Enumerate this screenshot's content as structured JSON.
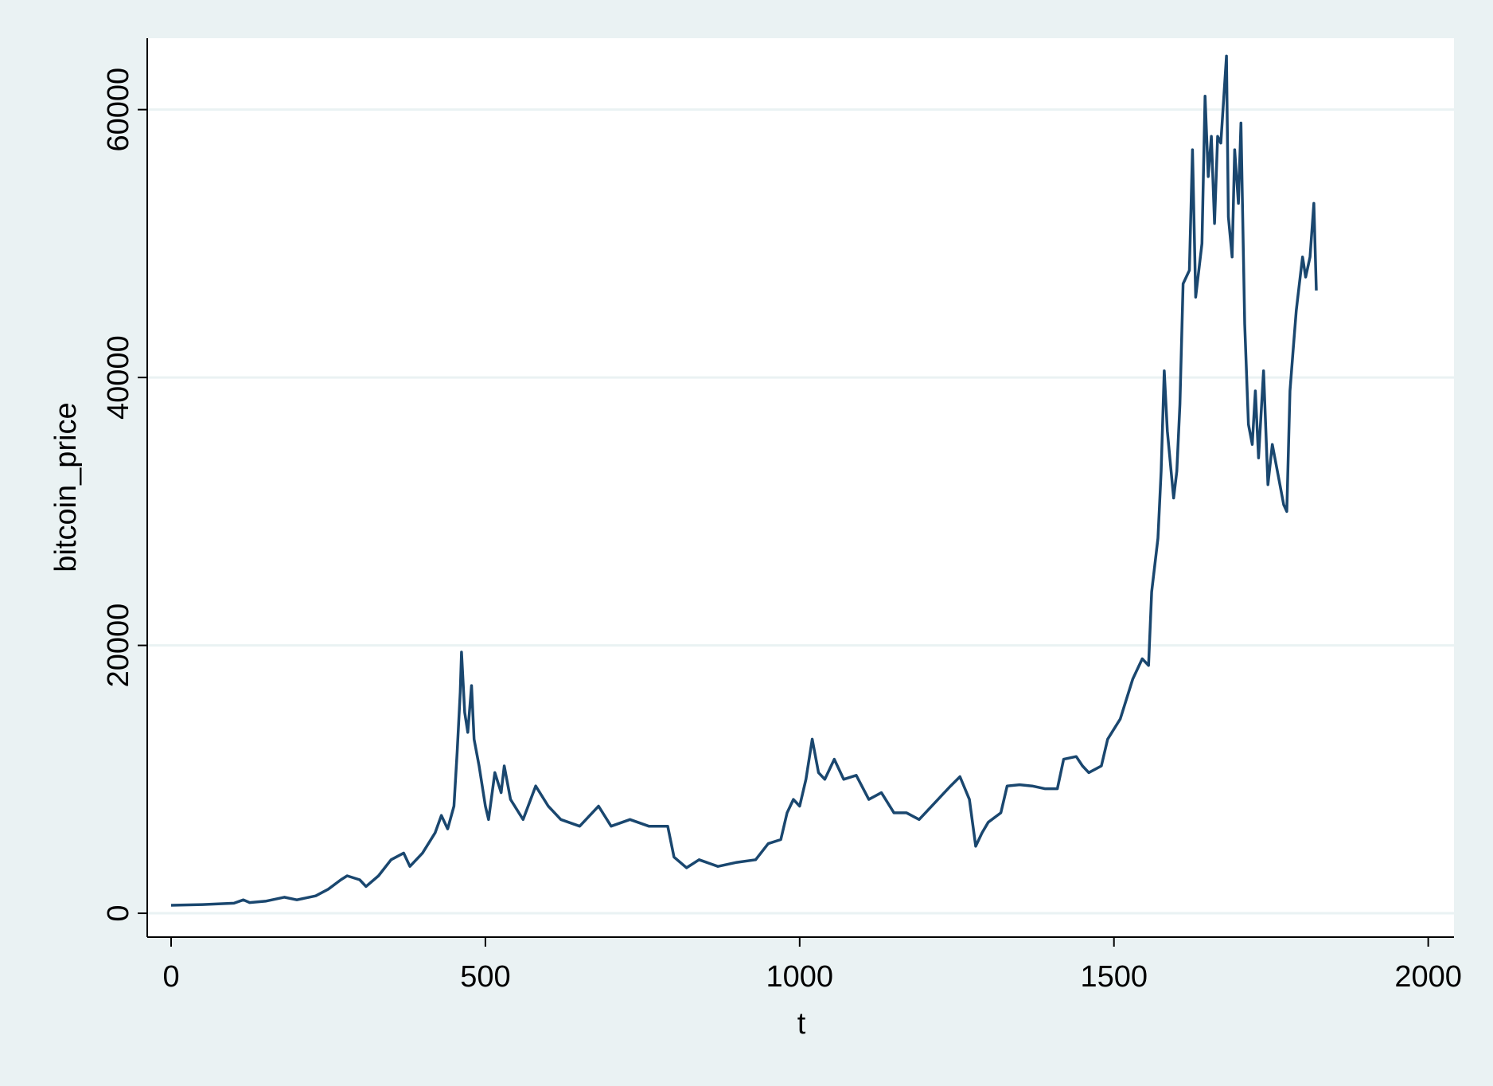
{
  "chart_data": {
    "type": "line",
    "x_label": "t",
    "y_label": "bitcoin_price",
    "x": [
      0,
      50,
      100,
      115,
      125,
      150,
      180,
      200,
      230,
      250,
      270,
      280,
      300,
      310,
      330,
      350,
      370,
      380,
      400,
      420,
      430,
      440,
      450,
      455,
      460,
      462,
      467,
      472,
      478,
      482,
      490,
      500,
      505,
      515,
      525,
      530,
      540,
      560,
      580,
      600,
      620,
      650,
      680,
      700,
      730,
      760,
      790,
      800,
      820,
      840,
      870,
      900,
      930,
      950,
      970,
      980,
      990,
      1000,
      1010,
      1020,
      1030,
      1040,
      1055,
      1070,
      1090,
      1110,
      1130,
      1150,
      1170,
      1190,
      1200,
      1220,
      1240,
      1255,
      1270,
      1280,
      1290,
      1300,
      1320,
      1330,
      1350,
      1370,
      1390,
      1410,
      1420,
      1440,
      1450,
      1460,
      1480,
      1490,
      1510,
      1530,
      1545,
      1555,
      1560,
      1570,
      1575,
      1580,
      1585,
      1595,
      1600,
      1605,
      1610,
      1620,
      1625,
      1630,
      1640,
      1645,
      1650,
      1655,
      1660,
      1665,
      1670,
      1679,
      1682,
      1688,
      1692,
      1698,
      1702,
      1708,
      1714,
      1720,
      1725,
      1730,
      1738,
      1745,
      1752,
      1760,
      1770,
      1775,
      1780,
      1785,
      1790,
      1795,
      1800,
      1805,
      1812,
      1818,
      1822
    ],
    "values": [
      600,
      650,
      750,
      1000,
      800,
      900,
      1200,
      1000,
      1300,
      1800,
      2500,
      2800,
      2500,
      2000,
      2800,
      4000,
      4500,
      3500,
      4500,
      6000,
      7300,
      6300,
      8000,
      12000,
      16500,
      19500,
      15000,
      13500,
      17000,
      13000,
      11000,
      8000,
      7000,
      10500,
      9000,
      11000,
      8500,
      7000,
      9500,
      8000,
      7000,
      6500,
      8000,
      6500,
      7000,
      6500,
      6500,
      4200,
      3400,
      4000,
      3500,
      3800,
      4000,
      5200,
      5500,
      7500,
      8500,
      8000,
      10000,
      13000,
      10500,
      10000,
      11500,
      10000,
      10300,
      8500,
      9000,
      7500,
      7500,
      7000,
      7500,
      8500,
      9500,
      10200,
      8500,
      5000,
      6000,
      6800,
      7500,
      9500,
      9600,
      9500,
      9300,
      9300,
      11500,
      11700,
      11000,
      10500,
      11000,
      13000,
      14500,
      17500,
      19000,
      18500,
      24000,
      28000,
      33000,
      40500,
      36000,
      31000,
      33000,
      38000,
      47000,
      48000,
      57000,
      46000,
      50000,
      61000,
      55000,
      58000,
      51500,
      58000,
      57500,
      64000,
      52000,
      49000,
      57000,
      53000,
      59000,
      44000,
      36500,
      35000,
      39000,
      34000,
      40500,
      32000,
      35000,
      33000,
      30500,
      30000,
      39000,
      42000,
      45000,
      47000,
      49000,
      47500,
      49000,
      53000,
      46500
    ],
    "color": "#1a476f",
    "xlim": [
      -38,
      2041
    ],
    "ylim": [
      -1780,
      65330
    ],
    "xticks": [
      0,
      500,
      1000,
      1500,
      2000
    ],
    "yticks": [
      0,
      20000,
      40000,
      60000
    ],
    "grid": true
  }
}
